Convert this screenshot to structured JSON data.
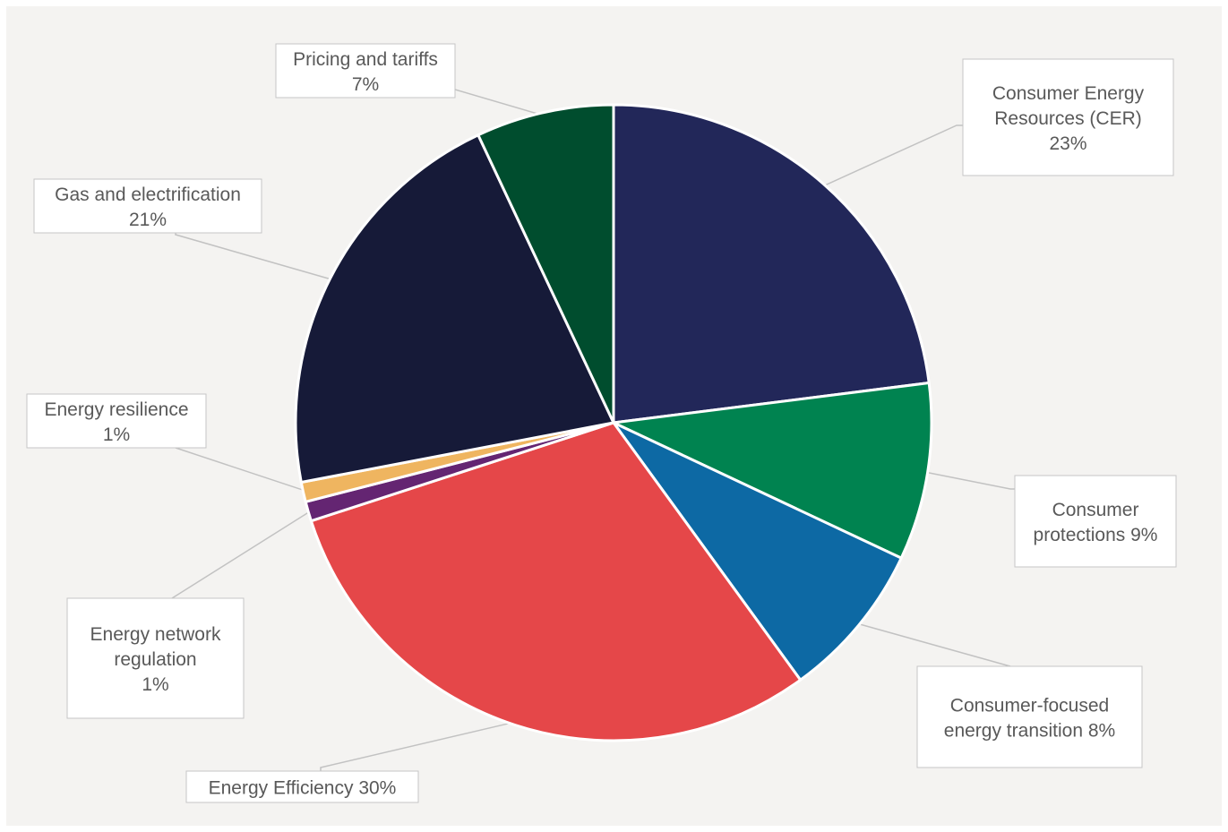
{
  "chart_data": {
    "type": "pie",
    "title": "",
    "slices": [
      {
        "label": "Consumer Energy Resources (CER)",
        "value": 23,
        "display": "23%",
        "color": "#222759"
      },
      {
        "label": "Consumer protections",
        "value": 9,
        "display": "9%",
        "color": "#008350"
      },
      {
        "label": "Consumer-focused energy transition",
        "value": 8,
        "display": "8%",
        "color": "#0d69a4"
      },
      {
        "label": "Energy Efficiency",
        "value": 30,
        "display": "30%",
        "color": "#e54749"
      },
      {
        "label": "Energy network regulation",
        "value": 1,
        "display": "1%",
        "color": "#642572"
      },
      {
        "label": "Energy resilience",
        "value": 1,
        "display": "1%",
        "color": "#efb560"
      },
      {
        "label": "Gas and electrification",
        "value": 21,
        "display": "21%",
        "color": "#161a38"
      },
      {
        "label": "Pricing and tariffs",
        "value": 7,
        "display": "7%",
        "color": "#004d2e"
      }
    ],
    "data_labels": [
      [
        "Consumer Energy",
        "Resources (CER)",
        "23%"
      ],
      [
        "Consumer",
        "protections 9%"
      ],
      [
        "Consumer-focused",
        "energy transition 8%"
      ],
      [
        "Energy Efficiency 30%"
      ],
      [
        "Energy network",
        "regulation",
        "1%"
      ],
      [
        "Energy resilience",
        "1%"
      ],
      [
        "Gas and electrification",
        "21%"
      ],
      [
        "Pricing and tariffs",
        "7%"
      ]
    ],
    "start_angle": "12 o'clock",
    "direction": "clockwise",
    "legend": "none",
    "label_style": "callout boxes with leader lines"
  }
}
